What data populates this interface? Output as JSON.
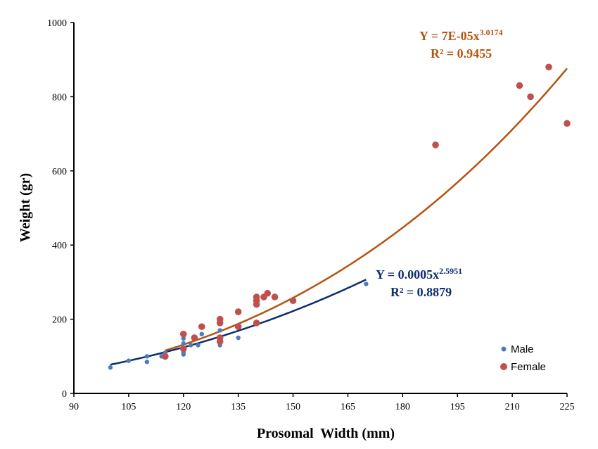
{
  "chart_data": {
    "type": "scatter",
    "xlabel": "Prosomal  Width (mm)",
    "ylabel": "Weight (gr)",
    "xlim": [
      90,
      225
    ],
    "ylim": [
      0,
      1000
    ],
    "xticks": [
      90,
      105,
      120,
      135,
      150,
      165,
      180,
      195,
      210,
      225
    ],
    "yticks": [
      0,
      200,
      400,
      600,
      800,
      1000
    ],
    "grid": false,
    "legend_position": "bottom-right",
    "series": [
      {
        "name": "Male",
        "color": "#4a7ebb",
        "points": [
          [
            100,
            70
          ],
          [
            105,
            88
          ],
          [
            110,
            85
          ],
          [
            110,
            100
          ],
          [
            114,
            100
          ],
          [
            115,
            110
          ],
          [
            120,
            105
          ],
          [
            120,
            110
          ],
          [
            120,
            118
          ],
          [
            120,
            135
          ],
          [
            120,
            148
          ],
          [
            122,
            130
          ],
          [
            124,
            130
          ],
          [
            125,
            160
          ],
          [
            130,
            130
          ],
          [
            130,
            140
          ],
          [
            130,
            150
          ],
          [
            130,
            170
          ],
          [
            135,
            150
          ],
          [
            170,
            295
          ]
        ],
        "trendline": {
          "type": "power",
          "coef": 0.0005,
          "exponent": 2.5951,
          "x_range": [
            100,
            170
          ],
          "color": "#0d2d6e",
          "equation_prefix": "Y = 0.0005x",
          "equation_exponent": "2.5951",
          "r2": "R² = 0.8879"
        }
      },
      {
        "name": "Female",
        "color": "#c0504d",
        "points": [
          [
            115,
            100
          ],
          [
            120,
            120
          ],
          [
            120,
            160
          ],
          [
            123,
            150
          ],
          [
            125,
            180
          ],
          [
            130,
            140
          ],
          [
            130,
            150
          ],
          [
            130,
            190
          ],
          [
            130,
            200
          ],
          [
            135,
            180
          ],
          [
            135,
            220
          ],
          [
            140,
            190
          ],
          [
            140,
            240
          ],
          [
            140,
            250
          ],
          [
            140,
            260
          ],
          [
            142,
            260
          ],
          [
            143,
            270
          ],
          [
            145,
            260
          ],
          [
            150,
            250
          ],
          [
            189,
            670
          ],
          [
            212,
            830
          ],
          [
            215,
            800
          ],
          [
            220,
            880
          ],
          [
            225,
            728
          ]
        ],
        "trendline": {
          "type": "power",
          "coef": 7e-05,
          "exponent": 3.0174,
          "x_range": [
            115,
            225
          ],
          "color": "#b5530f",
          "equation_prefix": "Y = 7E-05x",
          "equation_exponent": "3.0174",
          "r2": "R² = 0.9455"
        }
      }
    ]
  }
}
